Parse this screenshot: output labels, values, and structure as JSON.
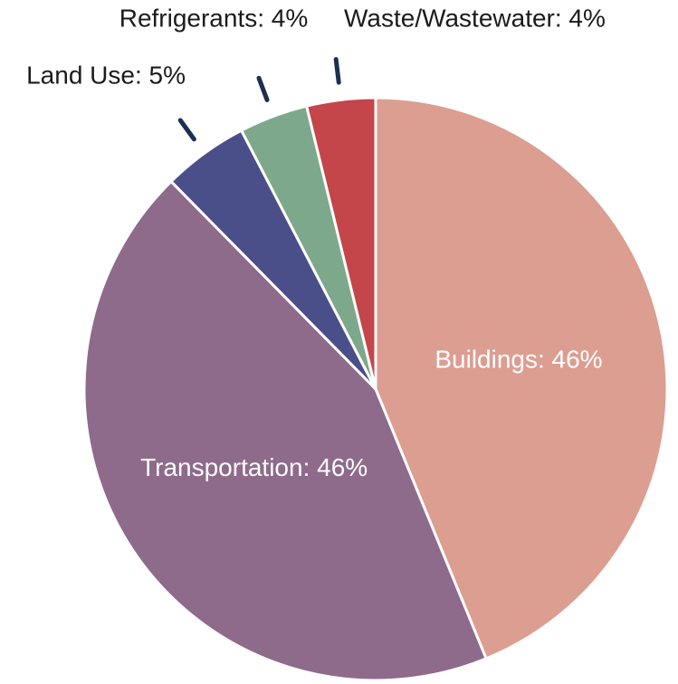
{
  "chart_data": {
    "type": "pie",
    "labels": [
      "Buildings: 46%",
      "Transportation: 46%",
      "Land Use: 5%",
      "Refrigerants: 4%",
      "Waste/Wastewater: 4%"
    ],
    "values": [
      46,
      46,
      5,
      4,
      4
    ],
    "colors": [
      "#db9e91",
      "#8e6a8b",
      "#4a4f8a",
      "#7ea88c",
      "#c4454a"
    ]
  }
}
